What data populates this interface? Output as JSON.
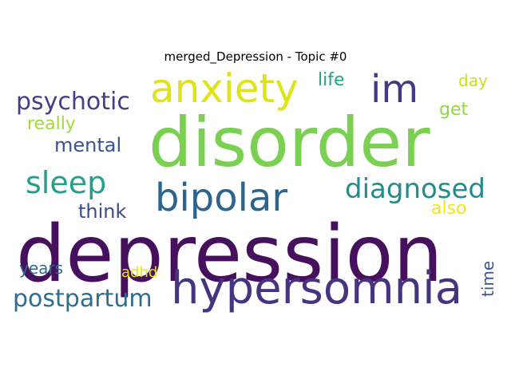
{
  "chart_data": {
    "type": "wordcloud",
    "title": "merged_Depression - Topic #0",
    "words": [
      {
        "text": "depression",
        "color": "#46105e"
      },
      {
        "text": "disorder",
        "color": "#7ad151"
      },
      {
        "text": "hypersomnia",
        "color": "#463480"
      },
      {
        "text": "bipolar",
        "color": "#2c648e"
      },
      {
        "text": "anxiety",
        "color": "#dfe318"
      },
      {
        "text": "im",
        "color": "#443a83"
      },
      {
        "text": "sleep",
        "color": "#24a08a"
      },
      {
        "text": "diagnosed",
        "color": "#228c8d"
      },
      {
        "text": "psychotic",
        "color": "#433e85"
      },
      {
        "text": "postpartum",
        "color": "#2e6f8e"
      },
      {
        "text": "mental",
        "color": "#3b528b"
      },
      {
        "text": "think",
        "color": "#3e4c8a"
      },
      {
        "text": "really",
        "color": "#a2da37"
      },
      {
        "text": "life",
        "color": "#21a685"
      },
      {
        "text": "day",
        "color": "#c8e020"
      },
      {
        "text": "get",
        "color": "#8fd744"
      },
      {
        "text": "also",
        "color": "#f1e51d"
      },
      {
        "text": "years",
        "color": "#2f6c8e"
      },
      {
        "text": "adhd",
        "color": "#e7e419"
      },
      {
        "text": "time",
        "color": "#38598c"
      }
    ]
  }
}
